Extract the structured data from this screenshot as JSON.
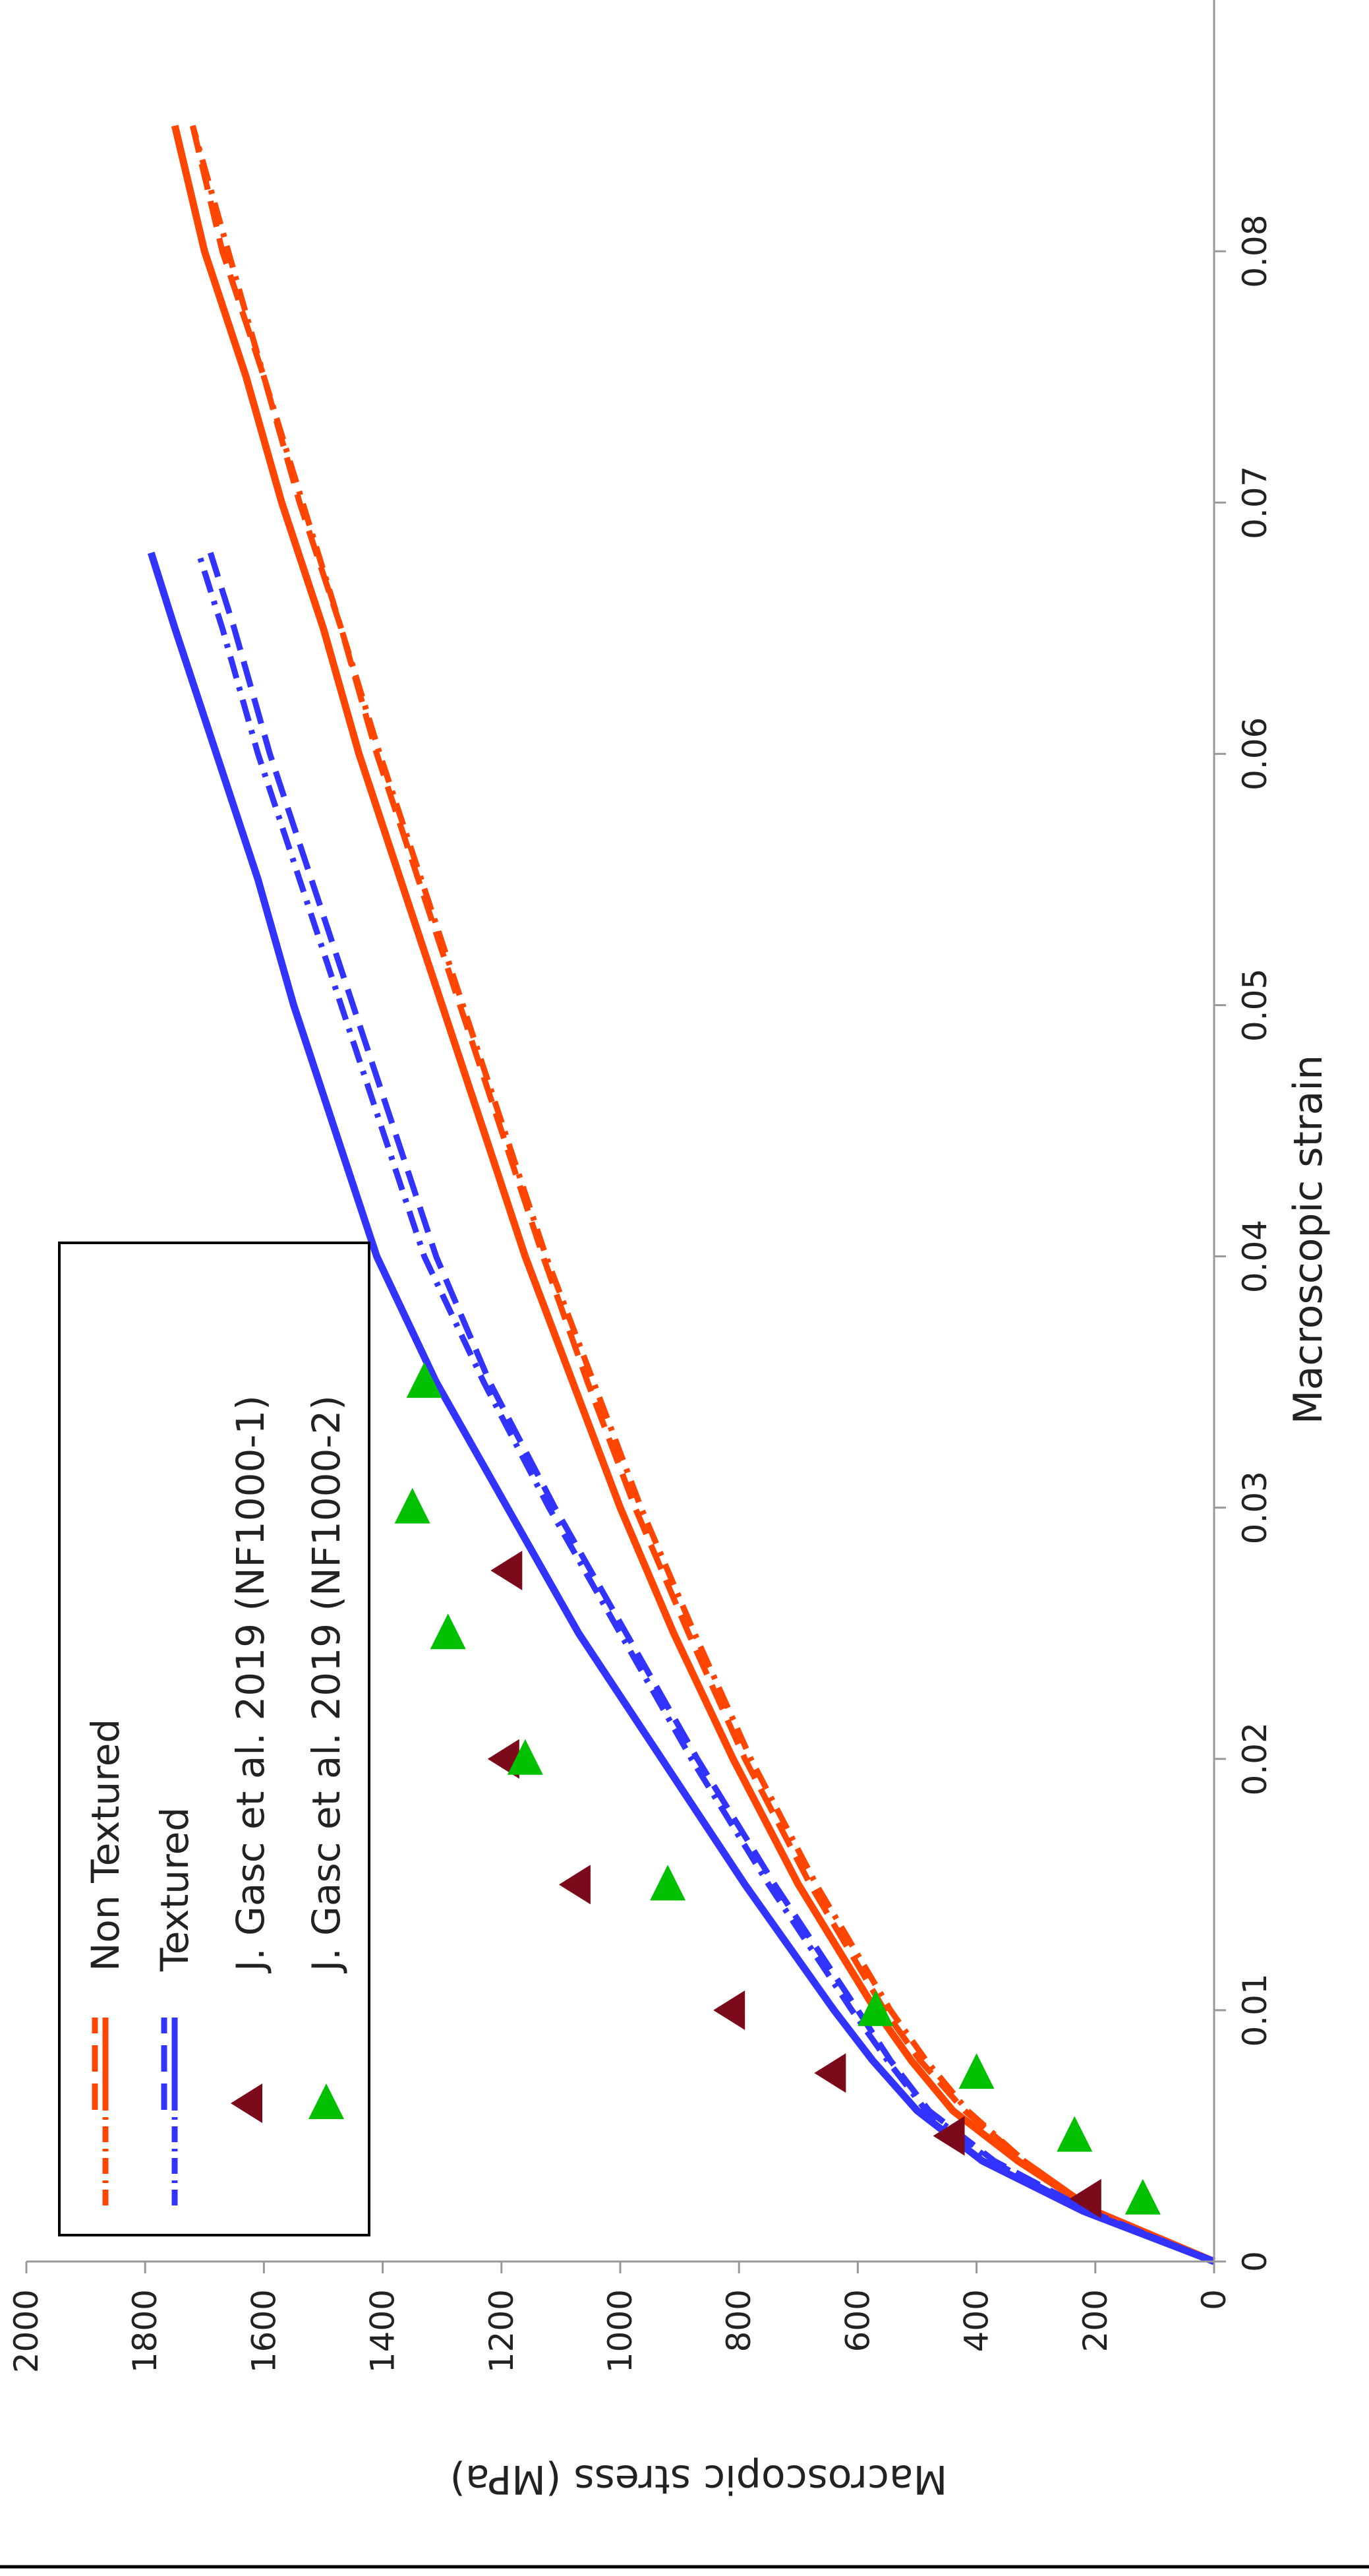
{
  "chart_data": {
    "type": "line",
    "xlabel": "Macroscopic strain",
    "ylabel": "Macroscopic stress (MPa)",
    "xlim": [
      0,
      0.09
    ],
    "ylim": [
      0,
      2000
    ],
    "x_ticks": [
      "0",
      "0.01",
      "0.02",
      "0.03",
      "0.04",
      "0.05",
      "0.06",
      "0.07",
      "0.08"
    ],
    "y_ticks": [
      "0",
      "200",
      "400",
      "600",
      "800",
      "1000",
      "1200",
      "1400",
      "1600",
      "1800",
      "2000"
    ],
    "legend_position": "top-left",
    "orientation": "rotated 90 degrees counter-clockwise",
    "series": [
      {
        "name": "Non Textured",
        "style": "solid",
        "color": "#ff4500",
        "x": [
          0,
          0.002,
          0.004,
          0.006,
          0.008,
          0.01,
          0.015,
          0.02,
          0.025,
          0.03,
          0.035,
          0.04,
          0.045,
          0.05,
          0.055,
          0.06,
          0.065,
          0.07,
          0.075,
          0.08,
          0.085
        ],
        "y": [
          0,
          200,
          330,
          440,
          510,
          570,
          700,
          810,
          910,
          1000,
          1080,
          1160,
          1230,
          1300,
          1370,
          1440,
          1500,
          1570,
          1630,
          1700,
          1750
        ]
      },
      {
        "name": "Non Textured",
        "style": "dashed",
        "color": "#ff4500",
        "x": [
          0,
          0.002,
          0.004,
          0.006,
          0.008,
          0.01,
          0.015,
          0.02,
          0.025,
          0.03,
          0.035,
          0.04,
          0.045,
          0.05,
          0.055,
          0.06,
          0.065,
          0.07,
          0.075,
          0.08,
          0.085
        ],
        "y": [
          0,
          200,
          320,
          420,
          495,
          555,
          680,
          790,
          885,
          975,
          1055,
          1130,
          1200,
          1270,
          1340,
          1410,
          1470,
          1540,
          1600,
          1670,
          1720
        ]
      },
      {
        "name": "Non Textured",
        "style": "dash-dot",
        "color": "#ff4500",
        "x": [
          0,
          0.002,
          0.004,
          0.006,
          0.008,
          0.01,
          0.015,
          0.02,
          0.025,
          0.03,
          0.035,
          0.04,
          0.045,
          0.05,
          0.055,
          0.06,
          0.065,
          0.07,
          0.075,
          0.08,
          0.085
        ],
        "y": [
          0,
          200,
          320,
          415,
          485,
          545,
          670,
          780,
          875,
          965,
          1045,
          1125,
          1195,
          1265,
          1335,
          1405,
          1470,
          1535,
          1600,
          1660,
          1720
        ]
      },
      {
        "name": "Textured",
        "style": "solid",
        "color": "#3333ff",
        "x": [
          0,
          0.002,
          0.004,
          0.006,
          0.008,
          0.01,
          0.015,
          0.02,
          0.025,
          0.03,
          0.035,
          0.04,
          0.045,
          0.05,
          0.055,
          0.06,
          0.065,
          0.068
        ],
        "y": [
          0,
          220,
          390,
          500,
          575,
          640,
          790,
          930,
          1070,
          1190,
          1310,
          1410,
          1480,
          1550,
          1610,
          1680,
          1750,
          1790
        ]
      },
      {
        "name": "Textured",
        "style": "dashed",
        "color": "#3333ff",
        "x": [
          0,
          0.002,
          0.004,
          0.006,
          0.008,
          0.01,
          0.015,
          0.02,
          0.025,
          0.03,
          0.035,
          0.04,
          0.045,
          0.05,
          0.055,
          0.06,
          0.065,
          0.068
        ],
        "y": [
          0,
          210,
          370,
          480,
          545,
          600,
          740,
          870,
          990,
          1110,
          1220,
          1310,
          1380,
          1450,
          1520,
          1590,
          1650,
          1690
        ]
      },
      {
        "name": "Textured",
        "style": "dash-dot",
        "color": "#3333ff",
        "x": [
          0,
          0.002,
          0.004,
          0.006,
          0.008,
          0.01,
          0.015,
          0.02,
          0.025,
          0.03,
          0.035,
          0.04,
          0.045,
          0.05,
          0.055,
          0.06,
          0.065,
          0.068
        ],
        "y": [
          0,
          215,
          375,
          485,
          550,
          610,
          750,
          880,
          1000,
          1120,
          1230,
          1330,
          1400,
          1470,
          1540,
          1610,
          1670,
          1710
        ]
      },
      {
        "name": "J. Gasc et al. 2019 (NF1000-1)",
        "type": "scatter",
        "marker": "triangle-left",
        "color": "#7b0a1a",
        "x": [
          0.0025,
          0.005,
          0.0075,
          0.01,
          0.015,
          0.02,
          0.0275
        ],
        "y": [
          210,
          440,
          640,
          810,
          1070,
          1190,
          1185
        ]
      },
      {
        "name": "J. Gasc et al. 2019 (NF1000-2)",
        "type": "scatter",
        "marker": "triangle-up",
        "color": "#00c000",
        "x": [
          0.0025,
          0.005,
          0.0075,
          0.01,
          0.015,
          0.02,
          0.025,
          0.03,
          0.035
        ],
        "y": [
          120,
          235,
          400,
          570,
          920,
          1160,
          1290,
          1350,
          1330
        ]
      }
    ],
    "legend": [
      "Non Textured",
      "Textured",
      "J. Gasc et al. 2019 (NF1000-1)",
      "J. Gasc et al. 2019 (NF1000-2)"
    ]
  }
}
